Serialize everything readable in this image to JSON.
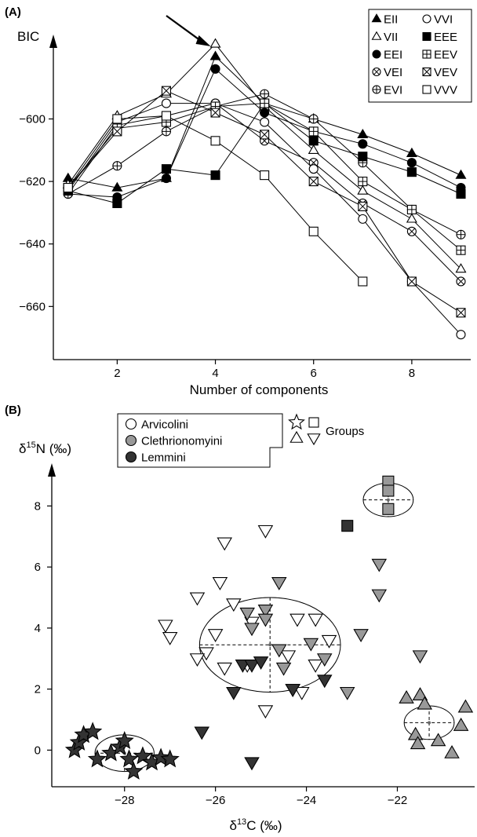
{
  "chart_data": [
    {
      "type": "line",
      "panel_label": "(A)",
      "ylabel": "BIC",
      "xlabel": "Number of components",
      "xlim": [
        0.7,
        9.2
      ],
      "ylim": [
        -677,
        -573
      ],
      "xticks": [
        2,
        4,
        6,
        8
      ],
      "yticks": [
        -600,
        -620,
        -640,
        -660
      ],
      "legend_position": "top-right",
      "series": [
        {
          "name": "EII",
          "marker": "triangle-filled",
          "x": [
            1,
            2,
            3,
            4,
            5,
            6,
            7,
            8,
            9
          ],
          "y": [
            -619,
            -622,
            -619,
            -580,
            -595,
            -600,
            -605,
            -611,
            -618
          ]
        },
        {
          "name": "VII",
          "marker": "triangle-open",
          "x": [
            1,
            2,
            3,
            4,
            5,
            6,
            7,
            8,
            9
          ],
          "y": [
            -621,
            -599,
            -592,
            -576,
            -596,
            -610,
            -623,
            -632,
            -648
          ]
        },
        {
          "name": "EEI",
          "marker": "circle-filled",
          "x": [
            1,
            2,
            3,
            4,
            5,
            6,
            7,
            8,
            9
          ],
          "y": [
            -624,
            -625,
            -619,
            -584,
            -598,
            -604,
            -608,
            -614,
            -622
          ]
        },
        {
          "name": "VEI",
          "marker": "circle-cross",
          "x": [
            1,
            2,
            3,
            4,
            5,
            6,
            7,
            8,
            9
          ],
          "y": [
            -624,
            -602,
            -599,
            -595,
            -607,
            -614,
            -627,
            -636,
            -652
          ]
        },
        {
          "name": "EVI",
          "marker": "circle-plus",
          "x": [
            1,
            2,
            3,
            4,
            5,
            6,
            7,
            8,
            9
          ],
          "y": [
            -624,
            -615,
            -604,
            -596,
            -592,
            -600,
            -614,
            -629,
            -637
          ]
        },
        {
          "name": "VVI",
          "marker": "circle-open",
          "x": [
            1,
            2,
            3,
            4,
            5,
            6,
            7,
            8,
            9
          ],
          "y": [
            -623,
            -601,
            -595,
            -595,
            -601,
            -616,
            -632,
            -652,
            -669
          ]
        },
        {
          "name": "EEE",
          "marker": "square-filled",
          "x": [
            1,
            2,
            3,
            4,
            5,
            6,
            7,
            8,
            9
          ],
          "y": [
            -623,
            -627,
            -616,
            -618,
            -595,
            -607,
            -612,
            -617,
            -624
          ]
        },
        {
          "name": "EEV",
          "marker": "square-plus",
          "x": [
            1,
            2,
            3,
            4,
            5,
            6,
            7,
            8,
            9
          ],
          "y": [
            -622,
            -603,
            -601,
            -596,
            -595,
            -604,
            -620,
            -629,
            -642
          ]
        },
        {
          "name": "VEV",
          "marker": "square-cross",
          "x": [
            1,
            2,
            3,
            4,
            5,
            6,
            7,
            8,
            9
          ],
          "y": [
            -622,
            -604,
            -591,
            -598,
            -605,
            -620,
            -628,
            -652,
            -662
          ]
        },
        {
          "name": "VVV",
          "marker": "square-open",
          "x": [
            1,
            2,
            3,
            4,
            5,
            6,
            7
          ],
          "y": [
            -622,
            -600,
            -599,
            -607,
            -618,
            -636,
            -652
          ]
        }
      ]
    },
    {
      "type": "scatter",
      "panel_label": "(B)",
      "ylabel_parts": [
        "δ",
        "15",
        "N (‰)"
      ],
      "xlabel_parts": [
        "δ",
        "13",
        "C (‰)"
      ],
      "xlim": [
        -29.6,
        -20.3
      ],
      "ylim": [
        -1.2,
        9.4
      ],
      "xticks": [
        -28,
        -26,
        -24,
        -22
      ],
      "yticks": [
        0,
        2,
        4,
        6,
        8
      ],
      "legend_position": "top-left",
      "legend": {
        "tribes": [
          {
            "label": "Arvicolini",
            "fill": "#ffffff"
          },
          {
            "label": "Clethrionomyini",
            "fill": "#999999"
          },
          {
            "label": "Lemmini",
            "fill": "#333333"
          }
        ],
        "groups_label": "Groups"
      },
      "colors": {
        "Arvicolini": "#ffffff",
        "Clethrionomyini": "#999999",
        "Lemmini": "#333333"
      },
      "ellipses": [
        {
          "cx": -28.0,
          "cy": -0.1,
          "rx": 0.65,
          "ry": 0.6
        },
        {
          "cx": -24.8,
          "cy": 3.45,
          "rx": 1.55,
          "ry": 1.55
        },
        {
          "cx": -22.2,
          "cy": 8.2,
          "rx": 0.55,
          "ry": 0.55
        },
        {
          "cx": -21.3,
          "cy": 0.9,
          "rx": 0.55,
          "ry": 0.55
        }
      ],
      "series": [
        {
          "name": "star-group",
          "marker": "star",
          "points": [
            {
              "x": -29.1,
              "y": 0.0,
              "tribe": "Lemmini"
            },
            {
              "x": -29.0,
              "y": 0.25,
              "tribe": "Lemmini"
            },
            {
              "x": -28.9,
              "y": 0.5,
              "tribe": "Lemmini"
            },
            {
              "x": -28.7,
              "y": 0.6,
              "tribe": "Lemmini"
            },
            {
              "x": -28.6,
              "y": -0.3,
              "tribe": "Lemmini"
            },
            {
              "x": -28.3,
              "y": -0.1,
              "tribe": "Lemmini"
            },
            {
              "x": -28.1,
              "y": 0.1,
              "tribe": "Lemmini"
            },
            {
              "x": -28.0,
              "y": 0.3,
              "tribe": "Lemmini"
            },
            {
              "x": -27.9,
              "y": -0.3,
              "tribe": "Lemmini"
            },
            {
              "x": -27.8,
              "y": -0.7,
              "tribe": "Lemmini"
            },
            {
              "x": -27.6,
              "y": -0.2,
              "tribe": "Lemmini"
            },
            {
              "x": -27.4,
              "y": -0.4,
              "tribe": "Lemmini"
            },
            {
              "x": -27.2,
              "y": -0.25,
              "tribe": "Lemmini"
            },
            {
              "x": -27.0,
              "y": -0.3,
              "tribe": "Lemmini"
            }
          ]
        },
        {
          "name": "square-group",
          "marker": "square",
          "points": [
            {
              "x": -22.2,
              "y": 8.8,
              "tribe": "Clethrionomyini"
            },
            {
              "x": -22.2,
              "y": 8.5,
              "tribe": "Clethrionomyini"
            },
            {
              "x": -22.2,
              "y": 7.9,
              "tribe": "Clethrionomyini"
            },
            {
              "x": -23.1,
              "y": 7.35,
              "tribe": "Lemmini"
            }
          ]
        },
        {
          "name": "triangle-up-group",
          "marker": "triangle-up",
          "points": [
            {
              "x": -21.8,
              "y": 1.7,
              "tribe": "Clethrionomyini"
            },
            {
              "x": -21.5,
              "y": 1.8,
              "tribe": "Clethrionomyini"
            },
            {
              "x": -21.4,
              "y": 1.5,
              "tribe": "Clethrionomyini"
            },
            {
              "x": -21.6,
              "y": 0.5,
              "tribe": "Clethrionomyini"
            },
            {
              "x": -21.55,
              "y": 0.2,
              "tribe": "Clethrionomyini"
            },
            {
              "x": -21.1,
              "y": 0.3,
              "tribe": "Clethrionomyini"
            },
            {
              "x": -20.8,
              "y": -0.1,
              "tribe": "Clethrionomyini"
            },
            {
              "x": -20.5,
              "y": 1.4,
              "tribe": "Clethrionomyini"
            },
            {
              "x": -20.6,
              "y": 0.8,
              "tribe": "Clethrionomyini"
            }
          ]
        },
        {
          "name": "triangle-down-group",
          "marker": "triangle-down",
          "points": [
            {
              "x": -24.9,
              "y": 7.2,
              "tribe": "Arvicolini"
            },
            {
              "x": -25.8,
              "y": 6.8,
              "tribe": "Arvicolini"
            },
            {
              "x": -25.9,
              "y": 5.5,
              "tribe": "Arvicolini"
            },
            {
              "x": -26.4,
              "y": 5.0,
              "tribe": "Arvicolini"
            },
            {
              "x": -25.6,
              "y": 4.8,
              "tribe": "Arvicolini"
            },
            {
              "x": -25.2,
              "y": 4.2,
              "tribe": "Arvicolini"
            },
            {
              "x": -27.1,
              "y": 4.1,
              "tribe": "Arvicolini"
            },
            {
              "x": -27.0,
              "y": 3.7,
              "tribe": "Arvicolini"
            },
            {
              "x": -26.0,
              "y": 3.8,
              "tribe": "Arvicolini"
            },
            {
              "x": -26.2,
              "y": 3.2,
              "tribe": "Arvicolini"
            },
            {
              "x": -26.4,
              "y": 3.0,
              "tribe": "Arvicolini"
            },
            {
              "x": -25.8,
              "y": 2.7,
              "tribe": "Arvicolini"
            },
            {
              "x": -25.3,
              "y": 2.8,
              "tribe": "Arvicolini"
            },
            {
              "x": -24.2,
              "y": 4.3,
              "tribe": "Arvicolini"
            },
            {
              "x": -23.8,
              "y": 4.3,
              "tribe": "Arvicolini"
            },
            {
              "x": -23.5,
              "y": 3.6,
              "tribe": "Arvicolini"
            },
            {
              "x": -24.4,
              "y": 3.1,
              "tribe": "Arvicolini"
            },
            {
              "x": -23.8,
              "y": 2.8,
              "tribe": "Arvicolini"
            },
            {
              "x": -24.3,
              "y": 2.0,
              "tribe": "Arvicolini"
            },
            {
              "x": -24.1,
              "y": 1.9,
              "tribe": "Arvicolini"
            },
            {
              "x": -24.9,
              "y": 1.3,
              "tribe": "Arvicolini"
            },
            {
              "x": -24.6,
              "y": 5.5,
              "tribe": "Clethrionomyini"
            },
            {
              "x": -24.9,
              "y": 4.6,
              "tribe": "Clethrionomyini"
            },
            {
              "x": -24.9,
              "y": 4.3,
              "tribe": "Clethrionomyini"
            },
            {
              "x": -25.3,
              "y": 4.5,
              "tribe": "Clethrionomyini"
            },
            {
              "x": -25.2,
              "y": 4.0,
              "tribe": "Clethrionomyini"
            },
            {
              "x": -24.6,
              "y": 3.3,
              "tribe": "Clethrionomyini"
            },
            {
              "x": -24.5,
              "y": 2.7,
              "tribe": "Clethrionomyini"
            },
            {
              "x": -23.9,
              "y": 3.5,
              "tribe": "Clethrionomyini"
            },
            {
              "x": -23.6,
              "y": 3.0,
              "tribe": "Clethrionomyini"
            },
            {
              "x": -22.4,
              "y": 6.1,
              "tribe": "Clethrionomyini"
            },
            {
              "x": -22.4,
              "y": 5.1,
              "tribe": "Clethrionomyini"
            },
            {
              "x": -22.8,
              "y": 3.8,
              "tribe": "Clethrionomyini"
            },
            {
              "x": -23.1,
              "y": 1.9,
              "tribe": "Clethrionomyini"
            },
            {
              "x": -21.5,
              "y": 3.1,
              "tribe": "Clethrionomyini"
            },
            {
              "x": -25.4,
              "y": 2.8,
              "tribe": "Lemmini"
            },
            {
              "x": -25.2,
              "y": 2.8,
              "tribe": "Lemmini"
            },
            {
              "x": -25.0,
              "y": 2.9,
              "tribe": "Lemmini"
            },
            {
              "x": -25.6,
              "y": 1.9,
              "tribe": "Lemmini"
            },
            {
              "x": -24.3,
              "y": 2.0,
              "tribe": "Lemmini"
            },
            {
              "x": -23.6,
              "y": 2.3,
              "tribe": "Lemmini"
            },
            {
              "x": -26.3,
              "y": 0.6,
              "tribe": "Lemmini"
            },
            {
              "x": -25.2,
              "y": -0.4,
              "tribe": "Lemmini"
            }
          ]
        }
      ]
    }
  ]
}
